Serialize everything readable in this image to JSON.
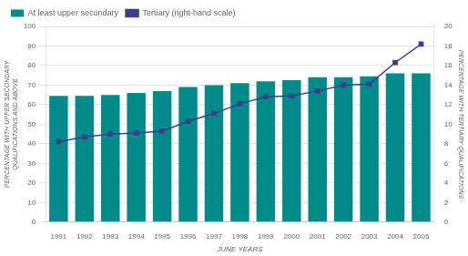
{
  "chart_data": {
    "type": "bar",
    "categories": [
      "1991",
      "1992",
      "1993",
      "1994",
      "1995",
      "1996",
      "1997",
      "1998",
      "1999",
      "2000",
      "2001",
      "2002",
      "2003",
      "2004",
      "2005"
    ],
    "series": [
      {
        "name": "At least upper secondary",
        "type": "bar",
        "color": "#008B8B",
        "values": [
          64.5,
          64.5,
          65.0,
          66.0,
          67.0,
          69.0,
          70.0,
          71.0,
          72.0,
          72.5,
          74.0,
          74.0,
          74.5,
          76.0,
          76.0
        ]
      },
      {
        "name": "Tertiary (right-hand scale)",
        "type": "line",
        "axis": "y2",
        "color": "#3a3f8f",
        "marker": "square",
        "line_style": "solid",
        "values": [
          8.2,
          8.7,
          9.0,
          9.1,
          9.3,
          10.3,
          11.1,
          12.1,
          12.8,
          12.9,
          13.4,
          14.0,
          14.1,
          16.3,
          18.2
        ]
      }
    ],
    "xlabel": "JUNE YEARS",
    "ylabel": "PERCENTAGE WITH UPPER SECONDARY\nQUALIFICATIONS AND ABOVE",
    "y2label": "PERCENTAGE WITH TERTIARY QUALIFICATIONS",
    "ylim": [
      0,
      100
    ],
    "yticks": [
      0,
      10,
      20,
      30,
      40,
      50,
      60,
      70,
      80,
      90,
      100
    ],
    "y2lim": [
      0,
      20
    ],
    "y2ticks": [
      0,
      2,
      4,
      6,
      8,
      10,
      12,
      14,
      16,
      18,
      20
    ],
    "grid": true,
    "legend": "upper left"
  }
}
